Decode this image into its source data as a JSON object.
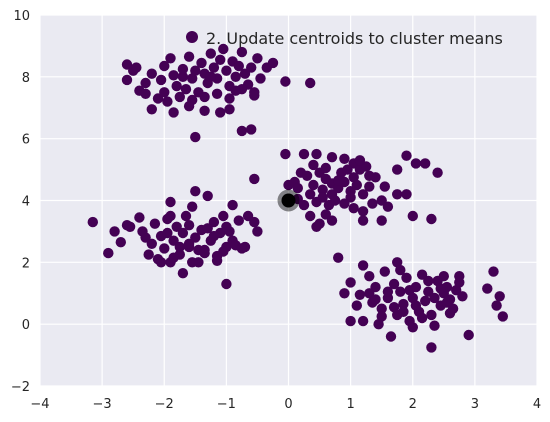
{
  "chart_data": {
    "type": "scatter",
    "title": "",
    "xlabel": "",
    "ylabel": "",
    "xlim": [
      -4,
      4
    ],
    "ylim": [
      -2,
      10
    ],
    "xticks": [
      -4,
      -3,
      -2,
      -1,
      0,
      1,
      2,
      3,
      4
    ],
    "yticks": [
      -2,
      0,
      2,
      4,
      6,
      8,
      10
    ],
    "grid": true,
    "legend": {
      "label": "2. Update centroids to cluster means",
      "placement": "top-right",
      "color": "#440154"
    },
    "colors": {
      "points": "#440154",
      "centroid": "#000000",
      "plot_background": "#eaeaf2",
      "grid": "#ffffff"
    },
    "centroid": {
      "x": 0.0,
      "y": 4.0
    },
    "series": [
      {
        "points": [
          [
            -2.6,
            8.4
          ],
          [
            -2.5,
            8.2
          ],
          [
            -2.45,
            8.3
          ],
          [
            -2.6,
            7.9
          ],
          [
            -2.2,
            8.1
          ],
          [
            -2.05,
            7.9
          ],
          [
            -1.9,
            8.6
          ],
          [
            -1.85,
            8.05
          ],
          [
            -1.8,
            7.7
          ],
          [
            -1.7,
            8.0
          ],
          [
            -1.65,
            7.6
          ],
          [
            -1.6,
            8.65
          ],
          [
            -1.55,
            7.95
          ],
          [
            -1.5,
            8.2
          ],
          [
            -1.45,
            7.5
          ],
          [
            -1.4,
            8.45
          ],
          [
            -1.35,
            8.1
          ],
          [
            -1.3,
            7.8
          ],
          [
            -1.25,
            8.75
          ],
          [
            -1.2,
            8.3
          ],
          [
            -1.15,
            7.95
          ],
          [
            -1.1,
            8.55
          ],
          [
            -1.05,
            8.9
          ],
          [
            -1.0,
            8.2
          ],
          [
            -0.95,
            7.7
          ],
          [
            -0.9,
            8.5
          ],
          [
            -0.85,
            8.0
          ],
          [
            -0.8,
            8.35
          ],
          [
            -0.75,
            8.8
          ],
          [
            -0.7,
            8.1
          ],
          [
            -0.65,
            7.75
          ],
          [
            -0.6,
            8.3
          ],
          [
            -0.55,
            7.5
          ],
          [
            -0.5,
            8.6
          ],
          [
            -0.45,
            7.95
          ],
          [
            -0.35,
            8.3
          ],
          [
            -0.25,
            8.45
          ],
          [
            -0.05,
            7.85
          ],
          [
            0.35,
            7.8
          ],
          [
            -2.4,
            7.55
          ],
          [
            -2.3,
            7.45
          ],
          [
            -2.1,
            7.3
          ],
          [
            -2.0,
            7.5
          ],
          [
            -1.95,
            7.2
          ],
          [
            -1.75,
            7.35
          ],
          [
            -1.55,
            7.25
          ],
          [
            -1.35,
            7.35
          ],
          [
            -1.15,
            7.45
          ],
          [
            -0.95,
            7.3
          ],
          [
            -0.75,
            7.6
          ],
          [
            -0.55,
            7.4
          ],
          [
            -2.2,
            6.95
          ],
          [
            -1.85,
            6.85
          ],
          [
            -1.6,
            7.05
          ],
          [
            -1.35,
            6.9
          ],
          [
            -1.1,
            6.85
          ],
          [
            -0.95,
            6.95
          ],
          [
            -0.75,
            6.25
          ],
          [
            -0.6,
            6.3
          ],
          [
            -1.5,
            6.05
          ],
          [
            -2.0,
            8.35
          ],
          [
            -1.25,
            8.0
          ],
          [
            -0.85,
            7.55
          ],
          [
            -1.7,
            8.25
          ],
          [
            -2.3,
            7.8
          ]
        ]
      },
      {
        "points": [
          [
            -3.15,
            3.3
          ],
          [
            -2.9,
            2.3
          ],
          [
            -2.8,
            3.0
          ],
          [
            -2.7,
            2.65
          ],
          [
            -2.6,
            3.2
          ],
          [
            -2.55,
            3.15
          ],
          [
            -2.4,
            3.45
          ],
          [
            -2.2,
            2.6
          ],
          [
            -2.15,
            3.25
          ],
          [
            -2.1,
            2.1
          ],
          [
            -2.05,
            2.85
          ],
          [
            -2.0,
            2.45
          ],
          [
            -1.95,
            3.4
          ],
          [
            -1.9,
            2.0
          ],
          [
            -1.9,
            3.95
          ],
          [
            -1.85,
            2.7
          ],
          [
            -1.8,
            3.15
          ],
          [
            -1.75,
            2.25
          ],
          [
            -1.7,
            1.65
          ],
          [
            -1.7,
            2.95
          ],
          [
            -1.65,
            3.5
          ],
          [
            -1.6,
            2.5
          ],
          [
            -1.55,
            3.8
          ],
          [
            -1.5,
            2.8
          ],
          [
            -1.5,
            4.3
          ],
          [
            -1.45,
            2.0
          ],
          [
            -1.4,
            3.05
          ],
          [
            -1.35,
            2.4
          ],
          [
            -1.3,
            4.15
          ],
          [
            -1.25,
            2.7
          ],
          [
            -1.2,
            3.3
          ],
          [
            -1.15,
            2.05
          ],
          [
            -1.1,
            2.95
          ],
          [
            -1.05,
            3.5
          ],
          [
            -1.0,
            2.5
          ],
          [
            -0.95,
            3.0
          ],
          [
            -0.9,
            2.7
          ],
          [
            -0.85,
            2.55
          ],
          [
            -0.8,
            3.35
          ],
          [
            -0.7,
            2.5
          ],
          [
            -0.65,
            3.5
          ],
          [
            -0.55,
            3.3
          ],
          [
            -0.5,
            3.0
          ],
          [
            -0.55,
            4.7
          ],
          [
            -1.0,
            1.3
          ],
          [
            -2.25,
            2.25
          ],
          [
            -2.3,
            2.8
          ],
          [
            -1.9,
            3.5
          ],
          [
            -1.6,
            2.6
          ],
          [
            -1.35,
            2.3
          ],
          [
            -1.2,
            2.85
          ],
          [
            -1.05,
            2.35
          ],
          [
            -0.9,
            3.85
          ],
          [
            -1.6,
            3.2
          ],
          [
            -1.75,
            2.5
          ],
          [
            -2.05,
            2.0
          ],
          [
            -1.85,
            2.15
          ],
          [
            -1.15,
            2.2
          ],
          [
            -1.3,
            3.1
          ],
          [
            -1.0,
            3.15
          ],
          [
            -1.45,
            2.4
          ],
          [
            -2.35,
            3.0
          ],
          [
            -1.95,
            2.95
          ],
          [
            -1.55,
            2.0
          ],
          [
            -0.75,
            2.45
          ]
        ]
      },
      {
        "points": [
          [
            -0.05,
            5.5
          ],
          [
            0.25,
            5.5
          ],
          [
            0.45,
            5.5
          ],
          [
            0.7,
            5.4
          ],
          [
            0.9,
            5.35
          ],
          [
            1.05,
            5.2
          ],
          [
            1.15,
            5.0
          ],
          [
            1.25,
            5.1
          ],
          [
            1.4,
            4.75
          ],
          [
            1.55,
            4.45
          ],
          [
            1.75,
            5.0
          ],
          [
            1.9,
            5.45
          ],
          [
            2.05,
            5.2
          ],
          [
            2.2,
            5.2
          ],
          [
            2.4,
            4.9
          ],
          [
            0.0,
            4.5
          ],
          [
            0.1,
            4.6
          ],
          [
            0.2,
            4.9
          ],
          [
            0.3,
            4.8
          ],
          [
            0.4,
            4.5
          ],
          [
            0.5,
            4.9
          ],
          [
            0.55,
            4.35
          ],
          [
            0.6,
            4.7
          ],
          [
            0.7,
            4.55
          ],
          [
            0.8,
            4.4
          ],
          [
            0.85,
            4.9
          ],
          [
            0.9,
            4.6
          ],
          [
            1.0,
            4.3
          ],
          [
            1.05,
            4.75
          ],
          [
            1.1,
            4.5
          ],
          [
            1.2,
            4.2
          ],
          [
            1.3,
            4.45
          ],
          [
            0.35,
            4.2
          ],
          [
            0.45,
            3.95
          ],
          [
            0.55,
            4.1
          ],
          [
            0.65,
            3.85
          ],
          [
            0.75,
            4.0
          ],
          [
            0.9,
            3.9
          ],
          [
            1.05,
            3.75
          ],
          [
            1.2,
            3.65
          ],
          [
            1.35,
            3.9
          ],
          [
            1.5,
            4.0
          ],
          [
            1.6,
            3.8
          ],
          [
            1.75,
            4.2
          ],
          [
            1.9,
            4.2
          ],
          [
            1.5,
            3.35
          ],
          [
            2.0,
            3.5
          ],
          [
            2.3,
            3.4
          ],
          [
            0.35,
            3.5
          ],
          [
            0.5,
            3.25
          ],
          [
            0.6,
            3.55
          ],
          [
            0.7,
            3.35
          ],
          [
            0.45,
            3.15
          ],
          [
            0.15,
            4.05
          ],
          [
            0.25,
            3.85
          ],
          [
            1.2,
            3.35
          ],
          [
            0.8,
            4.65
          ],
          [
            0.4,
            5.15
          ],
          [
            0.6,
            5.05
          ],
          [
            0.95,
            5.0
          ],
          [
            1.3,
            4.8
          ],
          [
            0.15,
            4.4
          ],
          [
            0.7,
            4.2
          ],
          [
            1.0,
            4.1
          ],
          [
            1.15,
            5.3
          ]
        ]
      },
      {
        "points": [
          [
            0.8,
            2.15
          ],
          [
            0.9,
            1.0
          ],
          [
            1.0,
            1.35
          ],
          [
            1.1,
            0.6
          ],
          [
            1.15,
            0.95
          ],
          [
            1.2,
            0.1
          ],
          [
            1.2,
            1.9
          ],
          [
            1.3,
            1.55
          ],
          [
            1.35,
            0.7
          ],
          [
            1.4,
            1.2
          ],
          [
            1.45,
            0.0
          ],
          [
            1.5,
            0.5
          ],
          [
            1.55,
            1.7
          ],
          [
            1.6,
            0.85
          ],
          [
            1.65,
            -0.4
          ],
          [
            1.7,
            1.3
          ],
          [
            1.75,
            0.3
          ],
          [
            1.75,
            2.0
          ],
          [
            1.8,
            1.05
          ],
          [
            1.85,
            0.65
          ],
          [
            1.9,
            1.5
          ],
          [
            1.95,
            0.1
          ],
          [
            2.0,
            0.85
          ],
          [
            2.05,
            1.2
          ],
          [
            2.1,
            0.4
          ],
          [
            2.15,
            1.6
          ],
          [
            2.2,
            0.75
          ],
          [
            2.25,
            1.05
          ],
          [
            2.3,
            0.3
          ],
          [
            2.35,
            -0.05
          ],
          [
            2.4,
            1.4
          ],
          [
            2.45,
            0.6
          ],
          [
            2.5,
            1.0
          ],
          [
            2.55,
            1.2
          ],
          [
            2.6,
            0.8
          ],
          [
            2.65,
            0.5
          ],
          [
            2.7,
            1.1
          ],
          [
            2.75,
            1.35
          ],
          [
            2.8,
            0.9
          ],
          [
            2.3,
            -0.75
          ],
          [
            2.9,
            -0.35
          ],
          [
            3.2,
            1.15
          ],
          [
            3.3,
            1.7
          ],
          [
            3.35,
            0.6
          ],
          [
            3.4,
            0.9
          ],
          [
            3.45,
            0.25
          ],
          [
            2.75,
            1.55
          ],
          [
            2.5,
            1.55
          ],
          [
            1.0,
            0.1
          ],
          [
            1.3,
            1.0
          ],
          [
            1.6,
            1.05
          ],
          [
            1.85,
            0.4
          ],
          [
            2.05,
            0.6
          ],
          [
            2.25,
            1.4
          ],
          [
            2.45,
            1.15
          ],
          [
            2.6,
            0.35
          ],
          [
            1.7,
            0.55
          ],
          [
            1.95,
            1.1
          ],
          [
            2.15,
            0.2
          ],
          [
            1.5,
            0.25
          ],
          [
            1.4,
            0.8
          ],
          [
            2.0,
            -0.1
          ],
          [
            2.35,
            0.85
          ],
          [
            1.8,
            1.75
          ],
          [
            2.55,
            0.7
          ]
        ]
      }
    ]
  }
}
